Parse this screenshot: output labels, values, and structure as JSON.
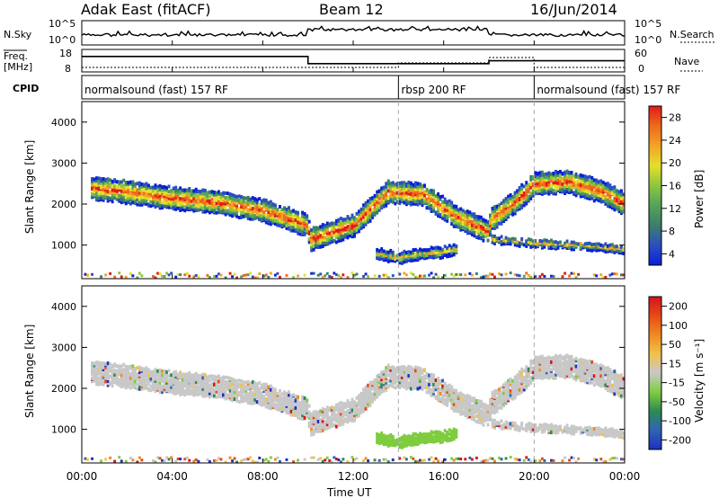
{
  "header": {
    "station": "Adak East (fitACF)",
    "beam": "Beam 12",
    "date": "16/Jun/2014"
  },
  "sky_panel": {
    "left_label": "N.Sky",
    "right_label": "N.Search",
    "left_ticks": [
      "10^5",
      "10^0"
    ],
    "right_ticks": [
      "10^5",
      "10^0"
    ]
  },
  "freq_panel": {
    "left_label_1": "Freq.",
    "left_label_2": "[MHz]",
    "left_ticks": [
      "18",
      "8"
    ],
    "right_label": "Nave",
    "right_ticks": [
      "60",
      "0"
    ]
  },
  "cpid_panel": {
    "label": "CPID",
    "segments": [
      {
        "label": "normalsound (fast) 157 RF",
        "start_hour": 0,
        "end_hour": 14
      },
      {
        "label": "rbsp 200 RF",
        "start_hour": 14,
        "end_hour": 20
      },
      {
        "label": "normalsound (fast) 157 RF",
        "start_hour": 20,
        "end_hour": 24
      }
    ]
  },
  "x_axis": {
    "label": "Time UT",
    "ticks": [
      "00:00",
      "04:00",
      "08:00",
      "12:00",
      "16:00",
      "20:00",
      "00:00"
    ]
  },
  "power_panel": {
    "ylabel": "Slant Range [km]",
    "yticks": [
      "4000",
      "3000",
      "2000",
      "1000"
    ],
    "colorbar_label": "Power [dB]",
    "colorbar_ticks": [
      "28",
      "24",
      "20",
      "16",
      "12",
      "8",
      "4"
    ],
    "colors": [
      "#0a1fd8",
      "#2c4fc0",
      "#3c7e6a",
      "#54a35a",
      "#8cc63e",
      "#e6df2b",
      "#f3a424",
      "#ef6a1d",
      "#e01c17"
    ]
  },
  "velocity_panel": {
    "ylabel": "Slant Range [km]",
    "yticks": [
      "4000",
      "3000",
      "2000",
      "1000"
    ],
    "colorbar_label": "Velocity [m s⁻¹]",
    "colorbar_ticks": [
      "200",
      "100",
      "50",
      "15",
      "-15",
      "-50",
      "-100",
      "-200"
    ],
    "colors": [
      "#1f2fbf",
      "#2d64b6",
      "#2d8a52",
      "#7fcc3f",
      "#c8c8c8",
      "#f2c24a",
      "#f08a1f",
      "#e84a17",
      "#d3141a"
    ]
  },
  "chart_data": {
    "type": "heatmap",
    "x_range_hours": [
      0,
      24
    ],
    "y_range_km": [
      180,
      4500
    ],
    "cpid_boundaries_hours": [
      14,
      20
    ],
    "frequency_steps": [
      {
        "start_hour": 0,
        "end_hour": 10,
        "freq_mhz": 15
      },
      {
        "start_hour": 10,
        "end_hour": 18,
        "freq_mhz": 10
      },
      {
        "start_hour": 18,
        "end_hour": 24,
        "freq_mhz": 12
      }
    ],
    "backscatter_bands": [
      {
        "name": "main-ionospheric",
        "points_hours": [
          0.4,
          2,
          4,
          6,
          8,
          9.9,
          10.1,
          12,
          13.5,
          15,
          16.5,
          17.9,
          18.1,
          19,
          20,
          21.5,
          23,
          24
        ],
        "points_range_km": [
          2400,
          2300,
          2150,
          2050,
          1850,
          1500,
          1150,
          1500,
          2300,
          2250,
          1700,
          1350,
          1650,
          2000,
          2500,
          2550,
          2300,
          2000
        ]
      },
      {
        "name": "near-range-midday",
        "points_hours": [
          13,
          14,
          15,
          16,
          16.5
        ],
        "points_range_km": [
          800,
          700,
          800,
          850,
          900
        ]
      },
      {
        "name": "lower-echo-afternoon",
        "points_hours": [
          18.1,
          20,
          22,
          24
        ],
        "points_range_km": [
          1150,
          1050,
          1000,
          900
        ]
      }
    ]
  }
}
